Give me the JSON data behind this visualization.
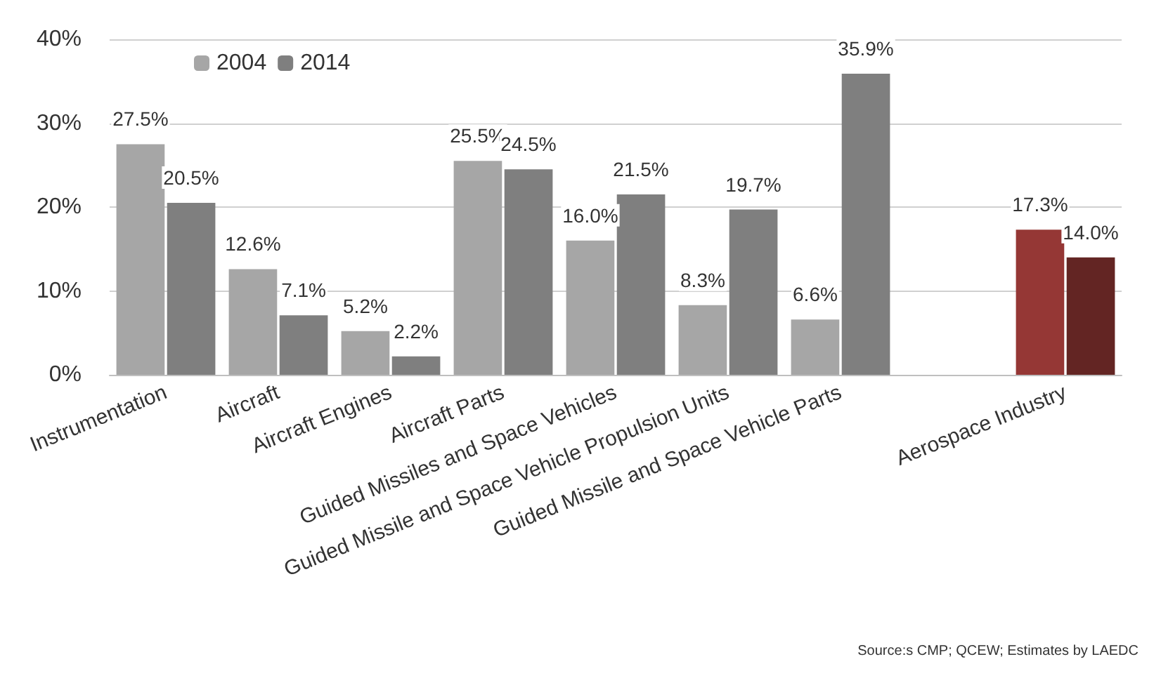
{
  "chart_data": {
    "type": "bar",
    "categories": [
      "Instrumentation",
      "Aircraft",
      "Aircraft Engines",
      "Aircraft Parts",
      "Guided Missiles and Space Vehicles",
      "Guided Missile and Space Vehicle Propulsion Units",
      "Guided Missile and Space Vehicle Parts",
      null,
      "Aerospace Industry"
    ],
    "series": [
      {
        "name": "2004",
        "color": "#a6a6a6",
        "colors": [
          "#a6a6a6",
          "#a6a6a6",
          "#a6a6a6",
          "#a6a6a6",
          "#a6a6a6",
          "#a6a6a6",
          "#a6a6a6",
          "#a6a6a6",
          "#953735"
        ],
        "values": [
          27.5,
          12.6,
          5.2,
          25.5,
          16.0,
          8.3,
          6.6,
          null,
          17.3
        ],
        "value_labels": [
          "27.5%",
          "12.6%",
          "5.2%",
          "25.5%",
          "16.0%",
          "8.3%",
          "6.6%",
          null,
          "17.3%"
        ]
      },
      {
        "name": "2014",
        "color": "#7f7f7f",
        "colors": [
          "#7f7f7f",
          "#7f7f7f",
          "#7f7f7f",
          "#7f7f7f",
          "#7f7f7f",
          "#7f7f7f",
          "#7f7f7f",
          "#7f7f7f",
          "#632523"
        ],
        "values": [
          20.5,
          7.1,
          2.2,
          24.5,
          21.5,
          19.7,
          35.9,
          null,
          14.0
        ],
        "value_labels": [
          "20.5%",
          "7.1%",
          "2.2%",
          "24.5%",
          "21.5%",
          "19.7%",
          "35.9%",
          null,
          "14.0%"
        ]
      }
    ],
    "ylim": [
      0,
      40
    ],
    "yticks": [
      {
        "value": 0,
        "label": "0%"
      },
      {
        "value": 10,
        "label": "10%"
      },
      {
        "value": 20,
        "label": "20%"
      },
      {
        "value": 30,
        "label": "30%"
      },
      {
        "value": 40,
        "label": "40%"
      }
    ],
    "grid": "y",
    "legend": "top left",
    "annotations": [
      "Source:s CMP; QCEW; Estimates by LAEDC"
    ]
  }
}
